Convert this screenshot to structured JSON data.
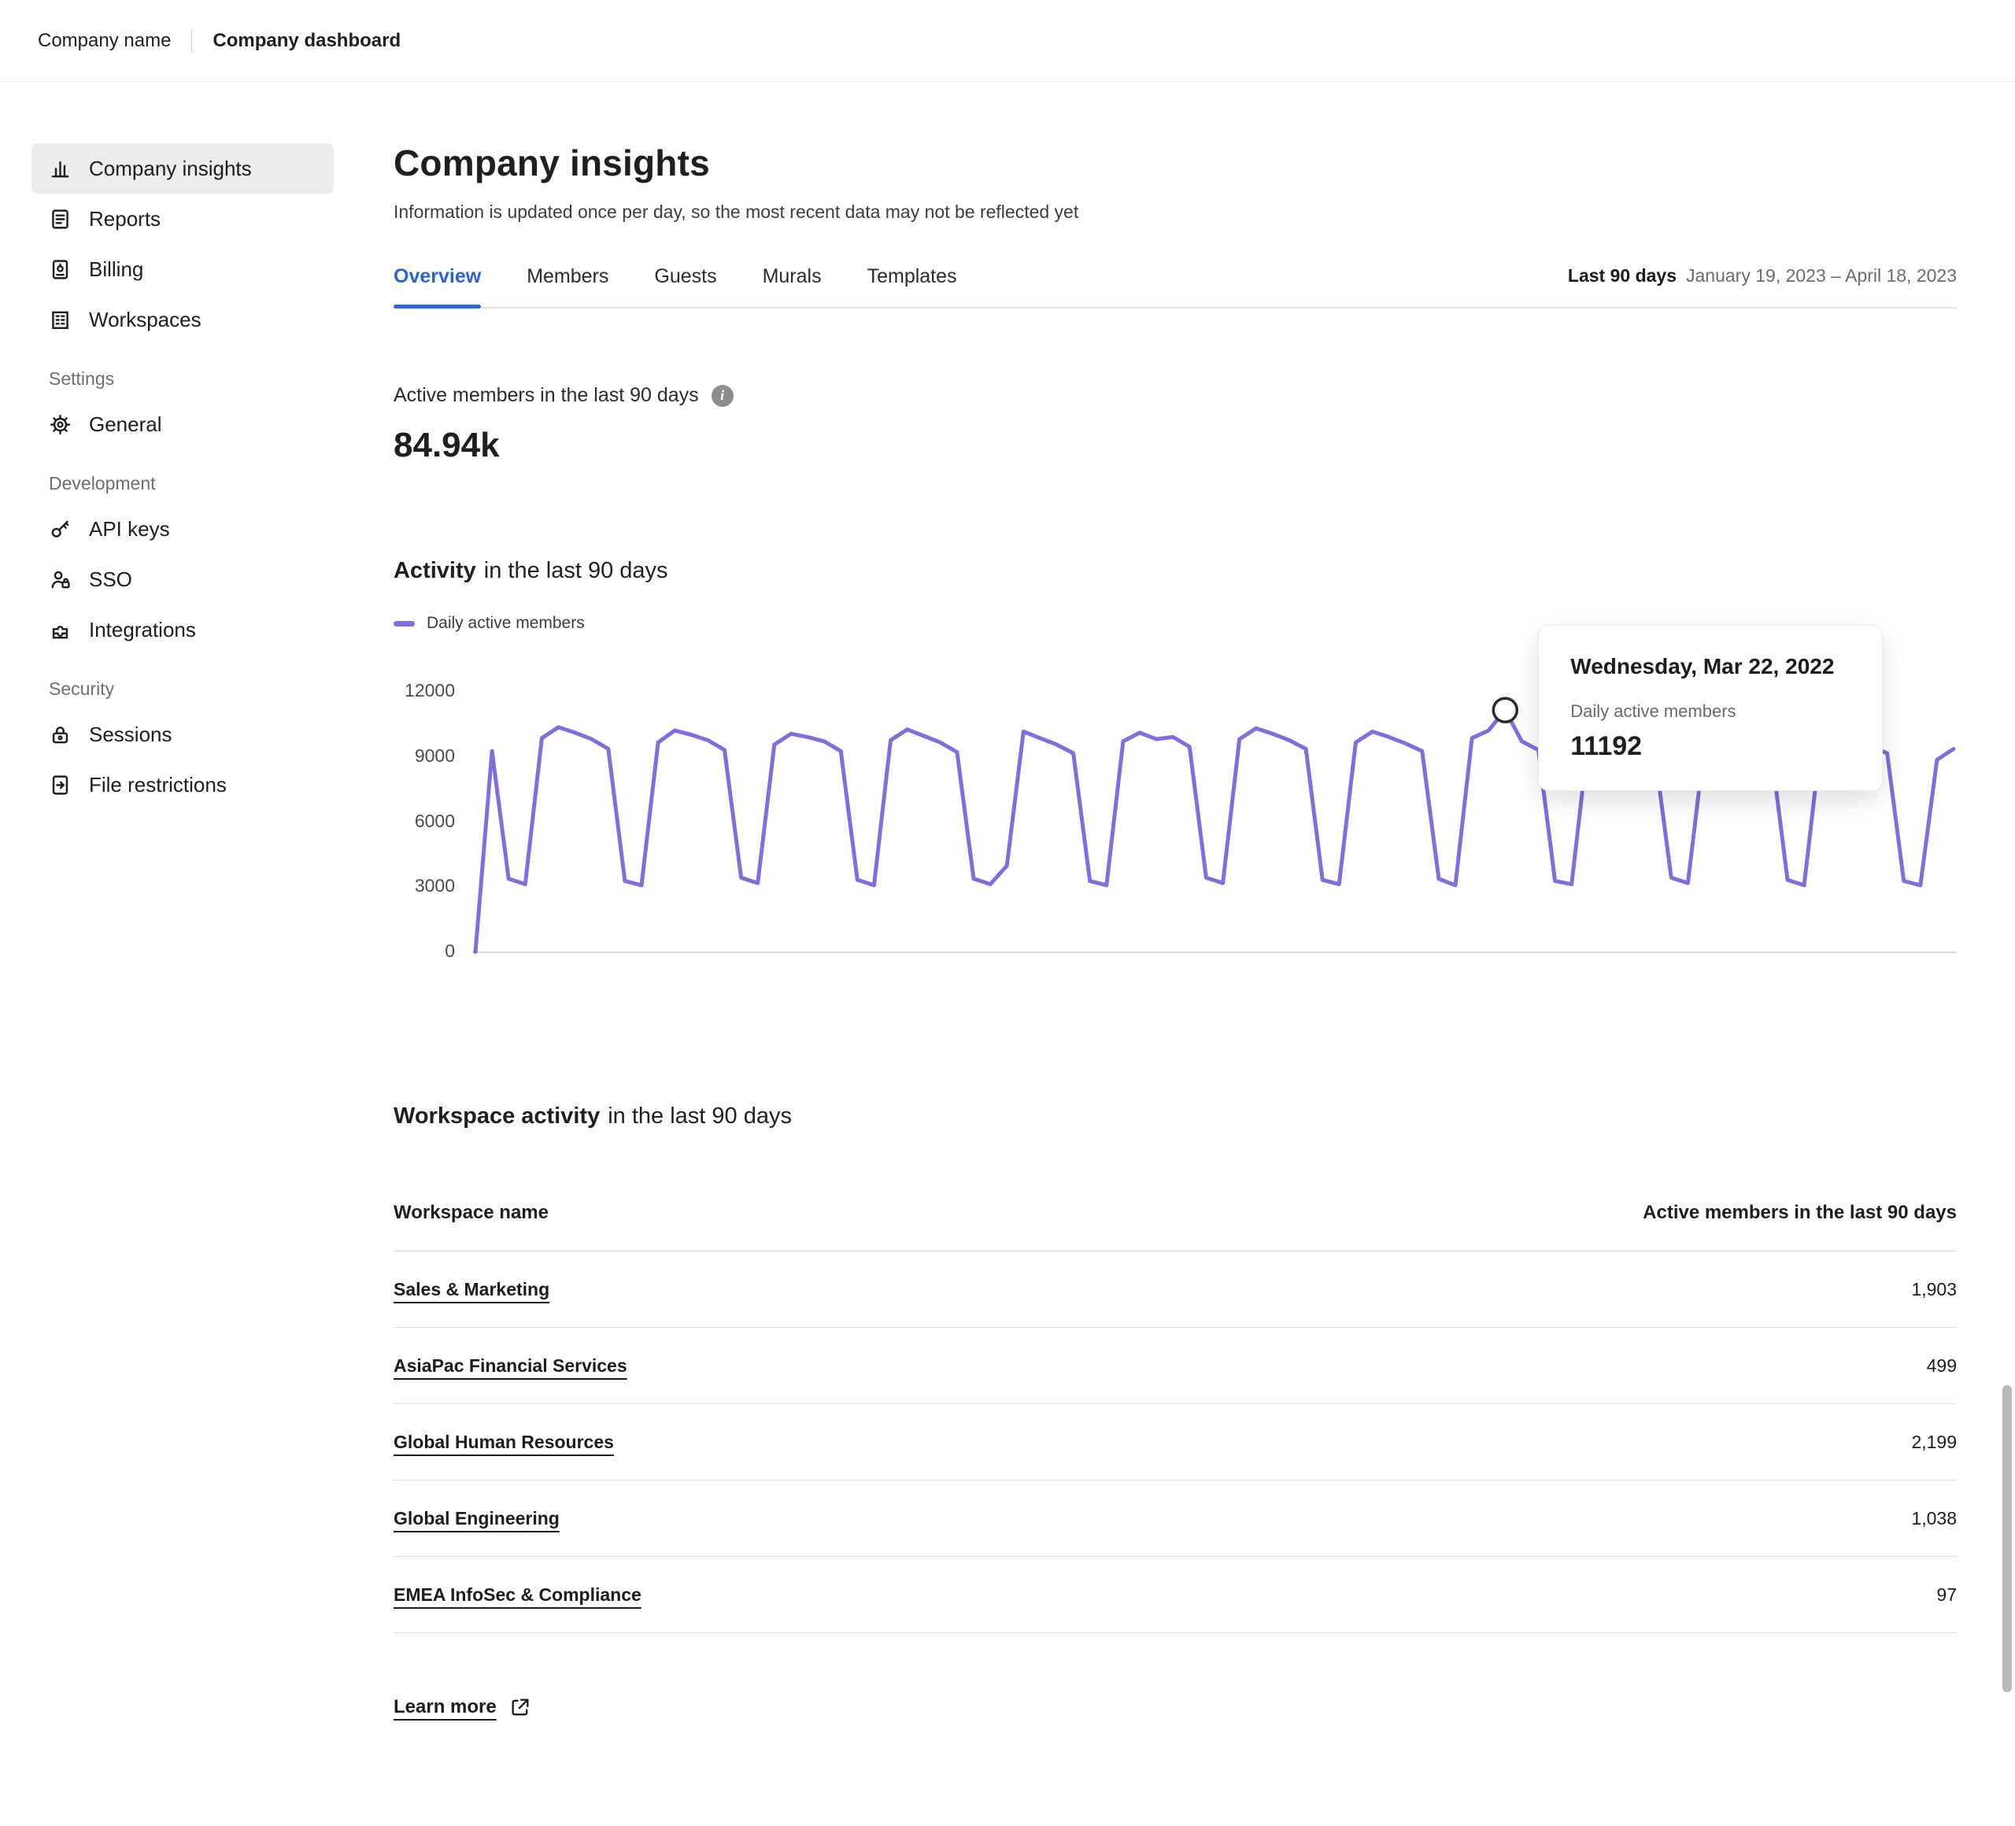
{
  "colors": {
    "accent_purple": "#7C6FE0",
    "accent_blue": "#2B63D9"
  },
  "topbar": {
    "company_name": "Company name",
    "page_title": "Company dashboard"
  },
  "sidebar": {
    "main_items": [
      {
        "label": "Company insights"
      },
      {
        "label": "Reports"
      },
      {
        "label": "Billing"
      },
      {
        "label": "Workspaces"
      }
    ],
    "settings_header": "Settings",
    "settings_items": [
      {
        "label": "General"
      }
    ],
    "development_header": "Development",
    "development_items": [
      {
        "label": "API keys"
      },
      {
        "label": "SSO"
      },
      {
        "label": "Integrations"
      }
    ],
    "security_header": "Security",
    "security_items": [
      {
        "label": "Sessions"
      },
      {
        "label": "File restrictions"
      }
    ]
  },
  "header": {
    "title": "Company insights",
    "subtitle": "Information is updated once per day, so the most recent data may not be reflected yet"
  },
  "tabs": {
    "items": [
      {
        "label": "Overview"
      },
      {
        "label": "Members"
      },
      {
        "label": "Guests"
      },
      {
        "label": "Murals"
      },
      {
        "label": "Templates"
      }
    ],
    "range_label": "Last 90 days",
    "range_dates": "January 19, 2023 –  April 18, 2023"
  },
  "kpi": {
    "label": "Active members in the last 90 days",
    "value": "84.94k"
  },
  "activity": {
    "title_bold": "Activity",
    "title_rest": "in the last 90 days",
    "legend": "Daily active members"
  },
  "chart_data": {
    "type": "line",
    "title": "Activity in the last 90 days",
    "series_name": "Daily active members",
    "x_range": [
      "January 19, 2023",
      "April 18, 2023"
    ],
    "ylim": [
      0,
      12000
    ],
    "ytick_labels": [
      "12000",
      "9000",
      "6000",
      "3000",
      "0"
    ],
    "grid": false,
    "legend_position": "top-left",
    "values": [
      20,
      9300,
      3400,
      3150,
      9900,
      10400,
      10150,
      9850,
      9400,
      3300,
      3100,
      9700,
      10250,
      10050,
      9800,
      9350,
      3450,
      3200,
      9600,
      10100,
      9950,
      9750,
      9300,
      3350,
      3100,
      9800,
      10300,
      10000,
      9700,
      9250,
      3400,
      3150,
      4000,
      10200,
      9900,
      9600,
      9200,
      3300,
      3100,
      9750,
      10150,
      9850,
      9950,
      9500,
      3450,
      3200,
      9850,
      10350,
      10100,
      9800,
      9400,
      3350,
      3150,
      9700,
      10200,
      9950,
      9650,
      9300,
      3400,
      3100,
      9900,
      10250,
      11192,
      9750,
      9350,
      3300,
      3150,
      9800,
      10300,
      10050,
      9700,
      9250,
      3450,
      3200,
      9600,
      10100,
      9900,
      9850,
      9450,
      3350,
      3100,
      9750,
      10200,
      10000,
      9500,
      9200,
      3300,
      3100,
      8900,
      9400
    ],
    "marker_index": 62,
    "marker_value": 11192,
    "marker_label": "Wednesday, Mar 22, 2022"
  },
  "tooltip": {
    "title": "Wednesday, Mar 22, 2022",
    "label": "Daily active members",
    "value": "11192"
  },
  "workspace_activity": {
    "title_bold": "Workspace activity",
    "title_rest": "in the last 90 days",
    "col_name": "Workspace name",
    "col_value": "Active members in the last 90 days",
    "rows": [
      {
        "name": "Sales & Marketing",
        "value": "1,903"
      },
      {
        "name": "AsiaPac Financial Services",
        "value": "499"
      },
      {
        "name": "Global Human Resources",
        "value": "2,199"
      },
      {
        "name": "Global Engineering",
        "value": "1,038"
      },
      {
        "name": "EMEA InfoSec & Compliance",
        "value": "97"
      }
    ],
    "learn_more": "Learn more"
  }
}
